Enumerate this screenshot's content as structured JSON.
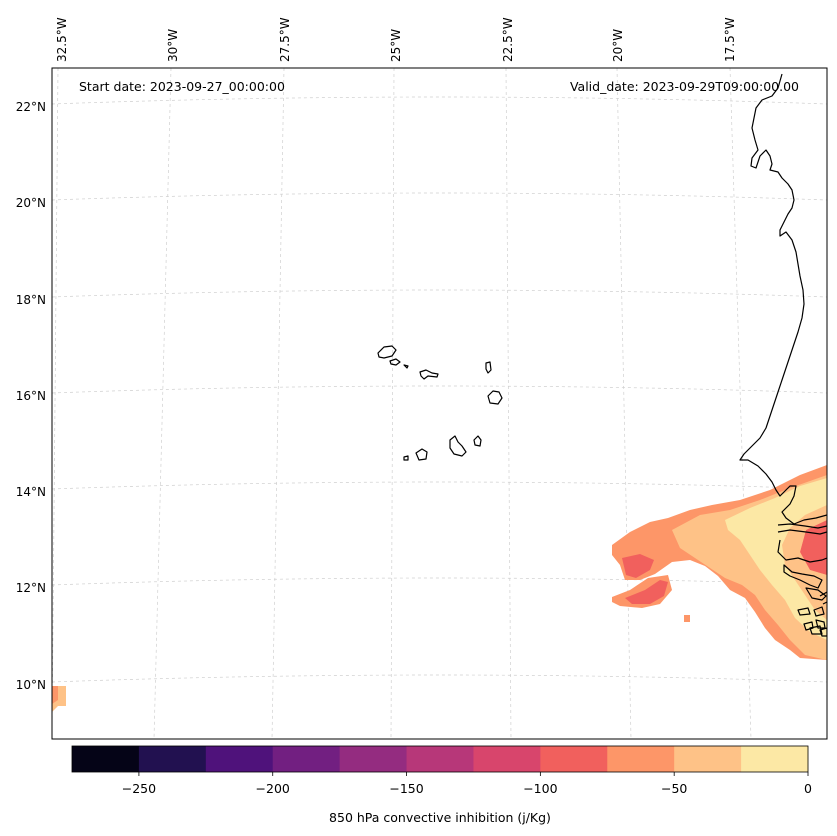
{
  "map": {
    "start_date_text": "Start date: 2023-09-27_00:00:00",
    "valid_date_text": "Valid_date: 2023-09-29T09:00:00.00",
    "lon_labels": [
      "32.5°W",
      "30°W",
      "27.5°W",
      "25°W",
      "22.5°W",
      "20°W",
      "17.5°W"
    ],
    "lat_labels": [
      "22°N",
      "20°N",
      "18°N",
      "16°N",
      "14°N",
      "12°N",
      "10°N"
    ],
    "features": [
      "Cape Verde islands",
      "West African coastline"
    ]
  },
  "colorbar": {
    "label": "850 hPa convective inhibition (j/Kg)",
    "min": -275,
    "max": 0,
    "step": 25,
    "tick_labels": [
      "−250",
      "−200",
      "−150",
      "−100",
      "−50",
      "0"
    ],
    "tick_values": [
      -250,
      -200,
      -150,
      -100,
      -50,
      0
    ],
    "colors": [
      "#050417",
      "#221150",
      "#4f127b",
      "#721f81",
      "#942c80",
      "#b73779",
      "#d8456c",
      "#f1605d",
      "#fd9668",
      "#fec287",
      "#fce8a5"
    ]
  },
  "fill_colors": {
    "very_light": "#fce8a5",
    "light": "#fec287",
    "orange": "#fd9668",
    "red": "#f1605d"
  }
}
